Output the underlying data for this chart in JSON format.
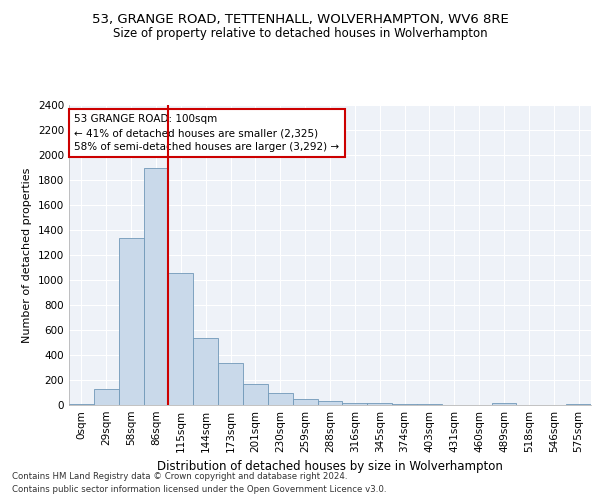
{
  "title1": "53, GRANGE ROAD, TETTENHALL, WOLVERHAMPTON, WV6 8RE",
  "title2": "Size of property relative to detached houses in Wolverhampton",
  "xlabel": "Distribution of detached houses by size in Wolverhampton",
  "ylabel": "Number of detached properties",
  "footnote1": "Contains HM Land Registry data © Crown copyright and database right 2024.",
  "footnote2": "Contains public sector information licensed under the Open Government Licence v3.0.",
  "annotation_title": "53 GRANGE ROAD: 100sqm",
  "annotation_line1": "← 41% of detached houses are smaller (2,325)",
  "annotation_line2": "58% of semi-detached houses are larger (3,292) →",
  "bar_color": "#c9d9ea",
  "bar_edge_color": "#7098b8",
  "vline_color": "#cc0000",
  "vline_x": 3.5,
  "annotation_box_color": "#ffffff",
  "annotation_box_edge": "#cc0000",
  "background_color": "#eef2f8",
  "categories": [
    "0sqm",
    "29sqm",
    "58sqm",
    "86sqm",
    "115sqm",
    "144sqm",
    "173sqm",
    "201sqm",
    "230sqm",
    "259sqm",
    "288sqm",
    "316sqm",
    "345sqm",
    "374sqm",
    "403sqm",
    "431sqm",
    "460sqm",
    "489sqm",
    "518sqm",
    "546sqm",
    "575sqm"
  ],
  "values": [
    10,
    130,
    1340,
    1900,
    1060,
    540,
    340,
    170,
    100,
    50,
    30,
    20,
    15,
    10,
    5,
    3,
    2,
    20,
    2,
    1,
    10
  ],
  "ylim": [
    0,
    2400
  ],
  "yticks": [
    0,
    200,
    400,
    600,
    800,
    1000,
    1200,
    1400,
    1600,
    1800,
    2000,
    2200,
    2400
  ],
  "title1_fontsize": 9.5,
  "title2_fontsize": 8.5,
  "xlabel_fontsize": 8.5,
  "ylabel_fontsize": 8,
  "tick_fontsize": 7.5,
  "annotation_fontsize": 7.5,
  "footnote_fontsize": 6.2
}
